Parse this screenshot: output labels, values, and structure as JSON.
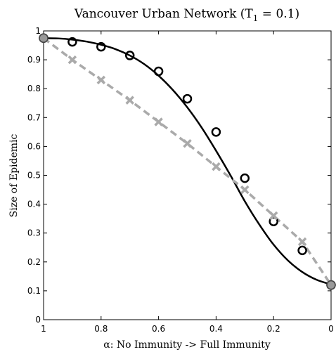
{
  "chart_data": {
    "type": "line",
    "title_main": "Vancouver Urban Network (T",
    "title_sub": "1",
    "title_tail": " = 0.1)",
    "xlabel_symbol": "α",
    "xlabel_text": ": No Immunity -> Full Immunity",
    "ylabel": "Size of Epidemic",
    "xlim": [
      1,
      0
    ],
    "ylim": [
      0,
      1
    ],
    "grid": false,
    "x_ticks": [
      "1",
      "0.8",
      "0.6",
      "0.4",
      "0.2",
      "0"
    ],
    "y_ticks": [
      "0",
      "0.1",
      "0.2",
      "0.3",
      "0.4",
      "0.5",
      "0.6",
      "0.7",
      "0.8",
      "0.9",
      "1"
    ],
    "series": [
      {
        "style": "solid-line",
        "color": "#000000",
        "x": [
          1.0,
          0.95,
          0.9,
          0.85,
          0.8,
          0.75,
          0.7,
          0.65,
          0.6,
          0.55,
          0.5,
          0.45,
          0.4,
          0.35,
          0.3,
          0.25,
          0.2,
          0.15,
          0.1,
          0.05,
          0.0
        ],
        "values": [
          0.975,
          0.974,
          0.97,
          0.963,
          0.952,
          0.937,
          0.915,
          0.885,
          0.845,
          0.795,
          0.735,
          0.665,
          0.585,
          0.5,
          0.41,
          0.33,
          0.26,
          0.205,
          0.165,
          0.138,
          0.122
        ]
      },
      {
        "style": "circle-markers",
        "color": "#000000",
        "x": [
          1.0,
          0.9,
          0.8,
          0.7,
          0.6,
          0.5,
          0.4,
          0.3,
          0.2,
          0.1,
          0.0
        ],
        "values": [
          0.975,
          0.962,
          0.945,
          0.915,
          0.86,
          0.765,
          0.65,
          0.49,
          0.34,
          0.24,
          0.12
        ]
      },
      {
        "style": "dashed-line",
        "color": "#aaaaaa",
        "x": [
          1.0,
          0.9,
          0.8,
          0.7,
          0.6,
          0.5,
          0.4,
          0.3,
          0.2,
          0.1,
          0.0
        ],
        "values": [
          0.975,
          0.9,
          0.83,
          0.76,
          0.685,
          0.61,
          0.53,
          0.45,
          0.36,
          0.27,
          0.12
        ]
      },
      {
        "style": "x-markers",
        "color": "#aaaaaa",
        "x": [
          1.0,
          0.9,
          0.8,
          0.7,
          0.6,
          0.5,
          0.4,
          0.3,
          0.2,
          0.1,
          0.0
        ],
        "values": [
          0.975,
          0.9,
          0.83,
          0.76,
          0.685,
          0.61,
          0.53,
          0.45,
          0.36,
          0.27,
          0.12
        ]
      }
    ],
    "endpoints": {
      "x": [
        1.0,
        0.0
      ],
      "values": [
        0.975,
        0.12
      ],
      "fill": "#999999"
    }
  }
}
